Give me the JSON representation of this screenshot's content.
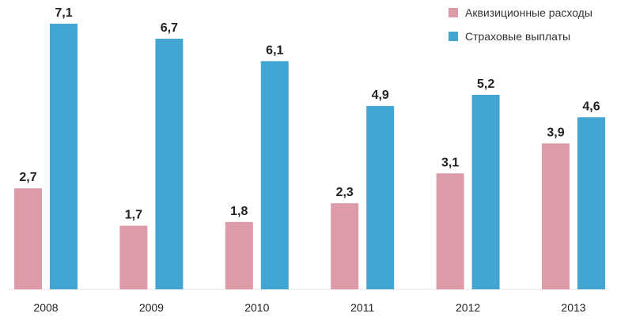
{
  "chart_data": {
    "type": "bar",
    "title": "",
    "xlabel": "",
    "ylabel": "",
    "categories": [
      "2008",
      "2009",
      "2010",
      "2011",
      "2012",
      "2013"
    ],
    "series": [
      {
        "name": "Аквизиционные расходы",
        "color": "#dd9aa8",
        "values": [
          2.7,
          1.7,
          1.8,
          2.3,
          3.1,
          3.9
        ],
        "labels": [
          "2,7",
          "1,7",
          "1,8",
          "2,3",
          "3,1",
          "3,9"
        ]
      },
      {
        "name": "Страховые выплаты",
        "color": "#43a5d2",
        "values": [
          7.1,
          6.7,
          6.1,
          4.9,
          5.2,
          4.6
        ],
        "labels": [
          "7,1",
          "6,7",
          "6,1",
          "4,9",
          "5,2",
          "4,6"
        ]
      }
    ],
    "ylim": [
      0,
      7.1
    ],
    "grid": false,
    "legend_position": "top-right"
  }
}
